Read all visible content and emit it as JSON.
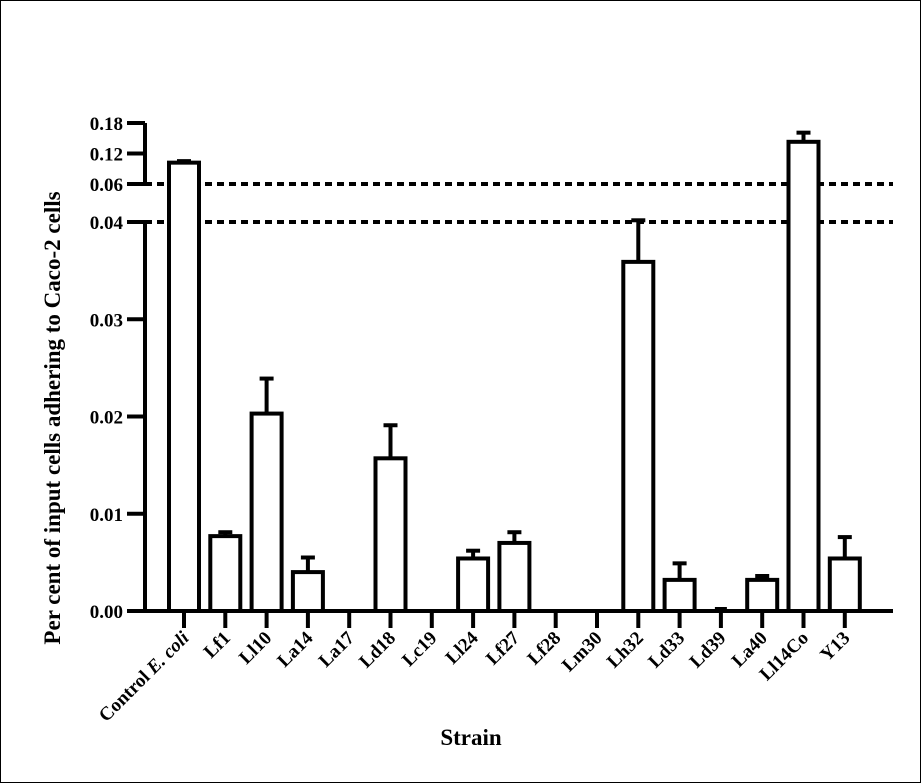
{
  "chart_data": {
    "type": "bar",
    "title": "",
    "xlabel": "Strain",
    "ylabel": "Per cent of input cells adhering to Caco-2 cells",
    "axis_break": {
      "lower_range": [
        0,
        0.04
      ],
      "upper_range": [
        0.06,
        0.18
      ],
      "lower_ticks": [
        "0.00",
        "0.01",
        "0.02",
        "0.03",
        "0.04"
      ],
      "upper_ticks": [
        "0.06",
        "0.12",
        "0.18"
      ]
    },
    "categories": [
      {
        "pre": "Control ",
        "ital": "E. coli"
      },
      {
        "pre": "Lf1",
        "ital": ""
      },
      {
        "pre": "Ll10",
        "ital": ""
      },
      {
        "pre": "La14",
        "ital": ""
      },
      {
        "pre": "La17",
        "ital": ""
      },
      {
        "pre": "Ld18",
        "ital": ""
      },
      {
        "pre": "Lc19",
        "ital": ""
      },
      {
        "pre": "Ll24",
        "ital": ""
      },
      {
        "pre": "Lf27",
        "ital": ""
      },
      {
        "pre": "Lf28",
        "ital": ""
      },
      {
        "pre": "Lm30",
        "ital": ""
      },
      {
        "pre": "Lh32",
        "ital": ""
      },
      {
        "pre": "Ld33",
        "ital": ""
      },
      {
        "pre": "Ld39",
        "ital": ""
      },
      {
        "pre": "La40",
        "ital": ""
      },
      {
        "pre": "Ll14Co",
        "ital": ""
      },
      {
        "pre": "Y13",
        "ital": ""
      }
    ],
    "values": [
      0.102,
      0.0077,
      0.0203,
      0.004,
      null,
      0.0157,
      null,
      0.0054,
      0.007,
      null,
      null,
      0.0359,
      0.0032,
      0.0002,
      0.0032,
      0.143,
      0.0054
    ],
    "errors": [
      0.003,
      0.0004,
      0.0036,
      0.0015,
      null,
      0.0034,
      null,
      0.0008,
      0.0011,
      null,
      null,
      0.005,
      0.0017,
      0.0,
      0.0004,
      0.018,
      0.0022
    ]
  }
}
